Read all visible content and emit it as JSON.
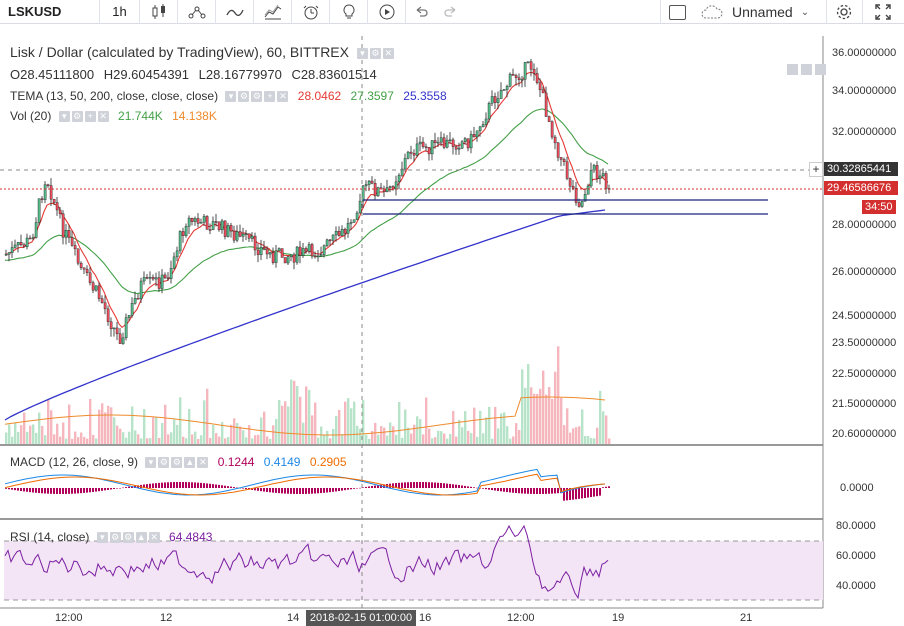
{
  "toolbar": {
    "symbol": "LSKUSD",
    "interval": "1h",
    "icons": [
      "candles-icon",
      "indicators-icon",
      "compare-icon",
      "templates-icon",
      "alert-icon",
      "idea-icon",
      "replay-icon",
      "undo-icon",
      "redo-icon"
    ],
    "layout_name": "Unnamed"
  },
  "main_legend": {
    "title": "Lisk / Dollar (calculated by TradingView), 60, BITTREX",
    "open": "O28.45111800",
    "high": "H29.60454391",
    "low": "L28.16779970",
    "close": "C28.83601514",
    "tema_label": "TEMA (13, 50, 200, close, close, close)",
    "tema_values": [
      "28.0462",
      "27.3597",
      "25.3558"
    ],
    "vol_label": "Vol (20)",
    "vol_values": [
      "21.744K",
      "14.138K"
    ]
  },
  "price_axis": [
    "36.00000000",
    "34.00000000",
    "32.00000000",
    "28.00000000",
    "26.00000000",
    "24.50000000",
    "23.50000000",
    "22.50000000",
    "21.50000000",
    "20.60000000"
  ],
  "price_tags": {
    "crosshair": "30.32865441",
    "last": "29.46586676",
    "countdown": "34:50"
  },
  "macd": {
    "label": "MACD (12, 26, close, 9)",
    "values": [
      "0.1244",
      "0.4149",
      "0.2905"
    ],
    "axis": [
      "0.0000"
    ]
  },
  "rsi": {
    "label": "RSI (14, close)",
    "value": "64.4843",
    "axis": [
      "80.0000",
      "60.0000",
      "40.0000"
    ]
  },
  "time_axis": {
    "labels": [
      "12:00",
      "12",
      "14",
      "16",
      "12:00",
      "19",
      "21"
    ],
    "crosshair_time": "2018-02-15 01:00:00"
  },
  "colors": {
    "up": "#53b987",
    "down": "#eb4d5c",
    "tema_fast": "#e53935",
    "tema_mid": "#43a047",
    "tema_slow": "#3333cc",
    "last_price": "#d32f2f",
    "crosshair_tag": "#333333",
    "rsi_fill": "#f3e5f5",
    "rsi_line": "#7b1fa2"
  }
}
